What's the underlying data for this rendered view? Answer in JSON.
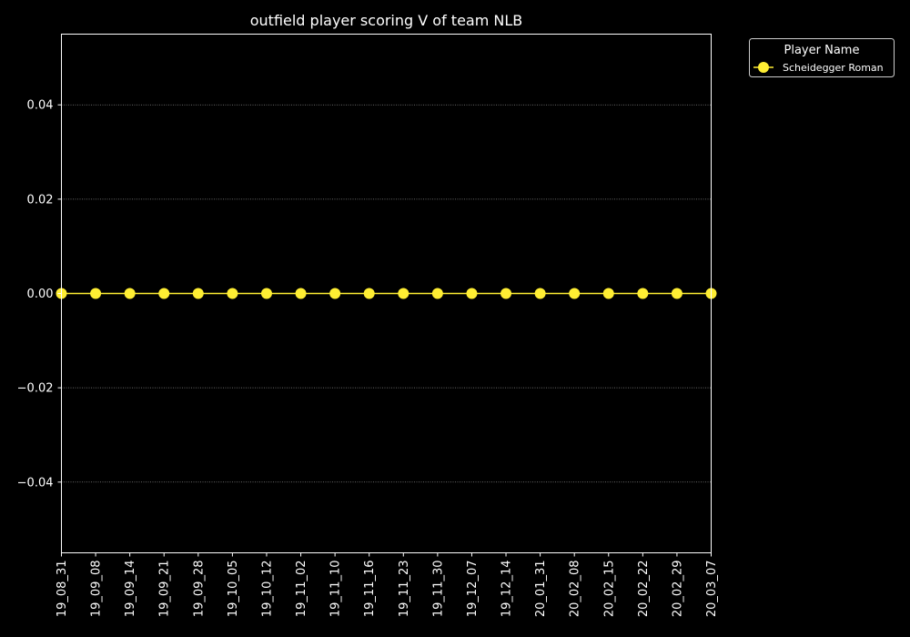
{
  "chart_data": {
    "type": "line",
    "title": "outfield player scoring V of team NLB",
    "xlabel": "",
    "ylabel": "",
    "categories": [
      "19_08_31",
      "19_09_08",
      "19_09_14",
      "19_09_21",
      "19_09_28",
      "19_10_05",
      "19_10_12",
      "19_11_02",
      "19_11_10",
      "19_11_16",
      "19_11_23",
      "19_11_30",
      "19_12_07",
      "19_12_14",
      "20_01_31",
      "20_02_08",
      "20_02_15",
      "20_02_22",
      "20_02_29",
      "20_03_07"
    ],
    "series": [
      {
        "name": "Scheidegger Roman",
        "values": [
          0,
          0,
          0,
          0,
          0,
          0,
          0,
          0,
          0,
          0,
          0,
          0,
          0,
          0,
          0,
          0,
          0,
          0,
          0,
          0
        ],
        "color": "#ffee33"
      }
    ],
    "ylim": [
      -0.055,
      0.055
    ],
    "yticks": [
      "0.04",
      "0.02",
      "0.00",
      "−0.02",
      "−0.04"
    ],
    "ytick_values": [
      0.04,
      0.02,
      0.0,
      -0.02,
      -0.04
    ],
    "grid": "horizontal-dotted",
    "legend": {
      "title": "Player Name",
      "placement": "outside-top-right"
    },
    "colors": {
      "background": "#000000",
      "axes": "#ffffff",
      "grid": "#888888",
      "text": "#ffffff"
    }
  }
}
